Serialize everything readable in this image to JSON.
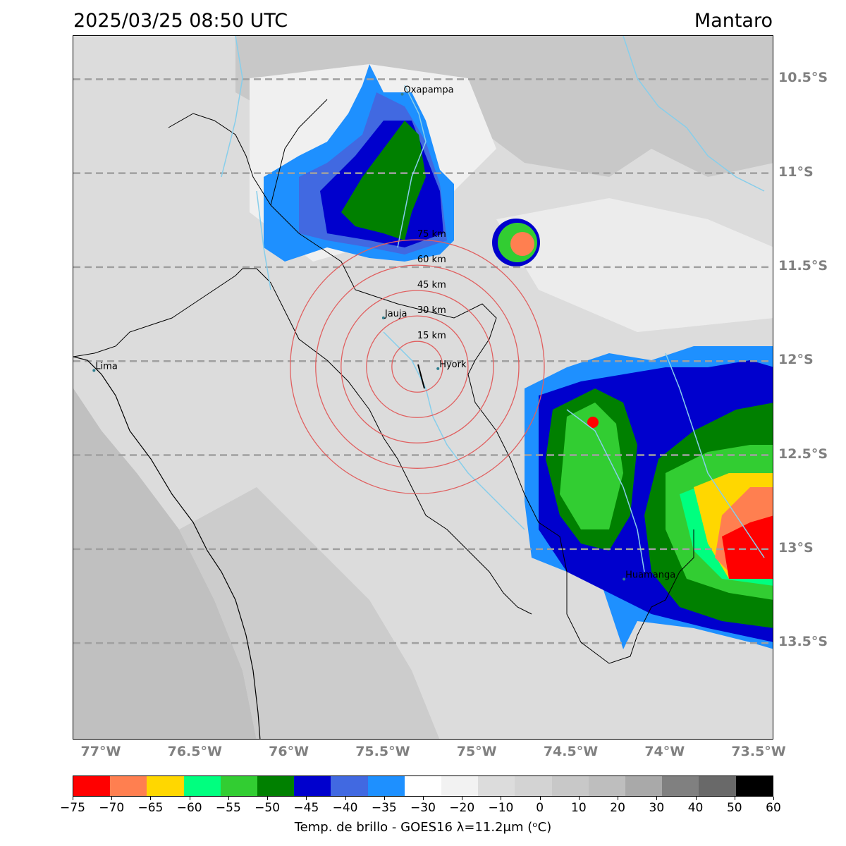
{
  "header": {
    "timestamp": "2025/03/25 08:50 UTC",
    "region": "Mantaro"
  },
  "map": {
    "lat_labels": [
      "10.5°S",
      "11°S",
      "11.5°S",
      "12°S",
      "12.5°S",
      "13°S",
      "13.5°S"
    ],
    "lon_labels": [
      "77°W",
      "76.5°W",
      "76°W",
      "75.5°W",
      "75°W",
      "74.5°W",
      "74°W",
      "73.5°W"
    ],
    "cities": [
      {
        "name": "Oxapampa",
        "lon": -75.4,
        "lat": -10.58
      },
      {
        "name": "Jauja",
        "lon": -75.5,
        "lat": -11.77
      },
      {
        "name": "Hyork",
        "lon": -75.21,
        "lat": -12.04
      },
      {
        "name": "Lima",
        "lon": -77.04,
        "lat": -12.05
      },
      {
        "name": "Huamanga",
        "lon": -74.22,
        "lat": -13.16
      }
    ],
    "range_rings": {
      "center": {
        "lon": -75.32,
        "lat": -12.03
      },
      "labels": [
        "15 km",
        "30 km",
        "45 km",
        "60 km",
        "75 km"
      ]
    },
    "ring_color": "#e06060",
    "river_color": "#87ceeb",
    "gridline_color": "#a0a0a0"
  },
  "colorbar": {
    "title": "Temp. de brillo - GOES16 λ=11.2μm (ᵒC)",
    "ticks": [
      "−75",
      "−70",
      "−65",
      "−60",
      "−55",
      "−50",
      "−45",
      "−40",
      "−35",
      "−30",
      "−20",
      "−10",
      "0",
      "10",
      "20",
      "30",
      "40",
      "50",
      "60"
    ],
    "colors": [
      "#ff0000",
      "#ff7f50",
      "#ffd700",
      "#00ff7f",
      "#32cd32",
      "#008000",
      "#0000cd",
      "#4169e1",
      "#1e90ff",
      "#ffffff",
      "#f2f2f2",
      "#dcdcdc",
      "#d3d3d3",
      "#c8c8c8",
      "#bebebe",
      "#a9a9a9",
      "#808080",
      "#696969",
      "#000000"
    ]
  }
}
